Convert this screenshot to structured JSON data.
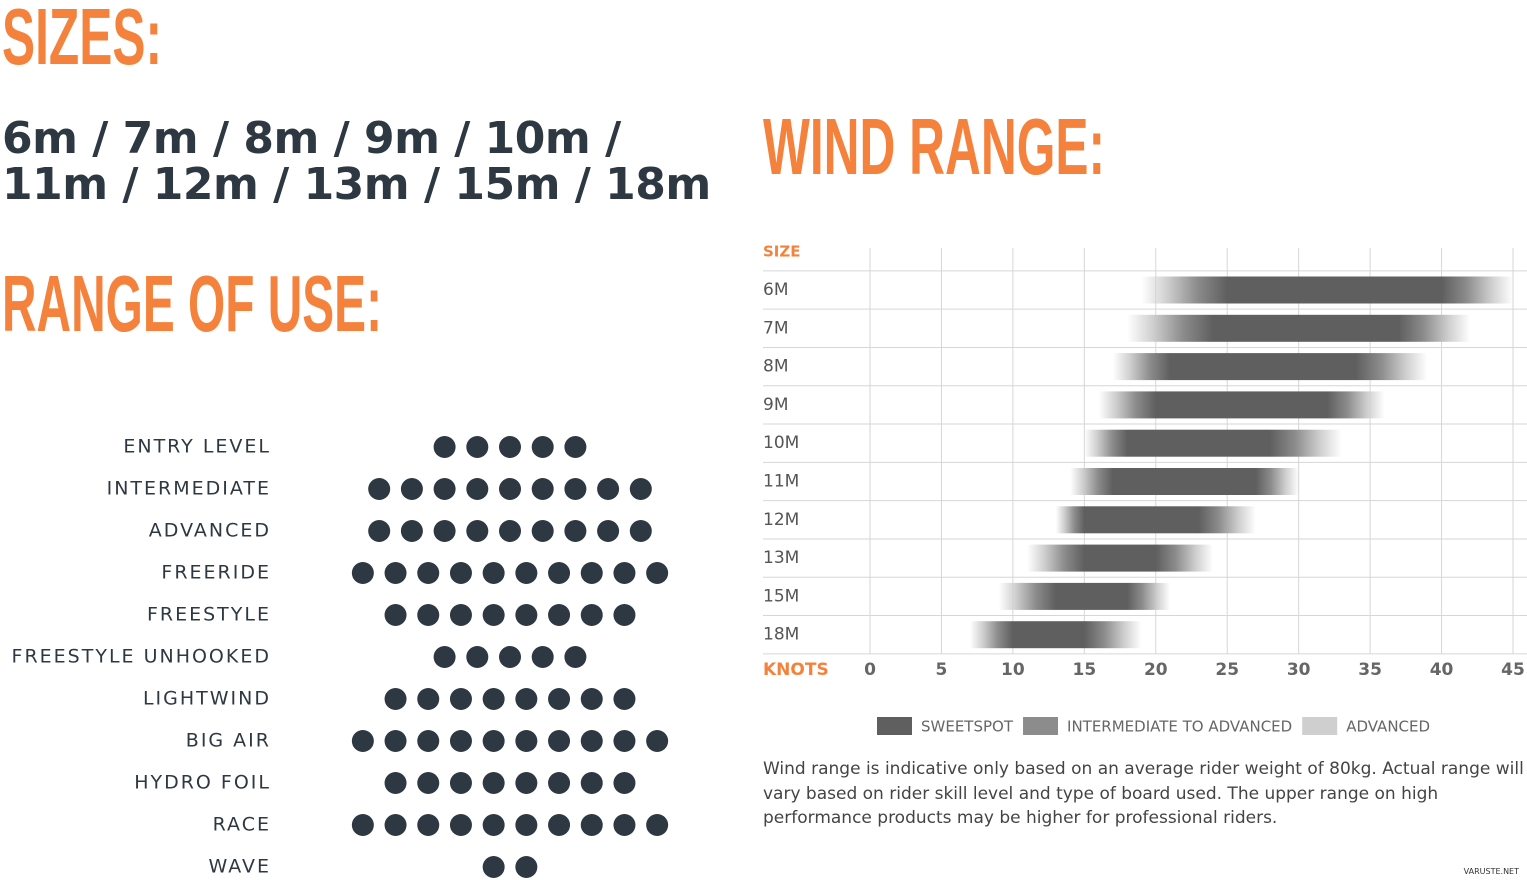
{
  "sizes": {
    "heading": "SIZES:",
    "text": "6m / 7m / 8m / 9m / 10m / 11m / 12m / 13m / 15m / 18m"
  },
  "range_of_use": {
    "heading": "RANGE OF USE:",
    "rows": [
      {
        "label": "ENTRY LEVEL",
        "dots": 5
      },
      {
        "label": "INTERMEDIATE",
        "dots": 9
      },
      {
        "label": "ADVANCED",
        "dots": 9
      },
      {
        "label": "FREERIDE",
        "dots": 10
      },
      {
        "label": "FREESTYLE",
        "dots": 8
      },
      {
        "label": "FREESTYLE UNHOOKED",
        "dots": 5
      },
      {
        "label": "LIGHTWIND",
        "dots": 8
      },
      {
        "label": "BIG AIR",
        "dots": 10
      },
      {
        "label": "HYDRO FOIL",
        "dots": 8
      },
      {
        "label": "RACE",
        "dots": 10
      },
      {
        "label": "WAVE",
        "dots": 2
      }
    ]
  },
  "chart_data": {
    "type": "range",
    "title": "WIND RANGE:",
    "y_label": "SIZE",
    "x_label": "KNOTS",
    "categories": [
      "6M",
      "7M",
      "8M",
      "9M",
      "10M",
      "11M",
      "12M",
      "13M",
      "15M",
      "18M"
    ],
    "series": [
      {
        "name": "SWEETSPOT",
        "color": "#5f5f5f",
        "low": [
          25,
          24,
          21,
          20,
          18,
          17,
          15,
          15,
          13,
          10
        ],
        "high": [
          40,
          37,
          34,
          32,
          28,
          27,
          23,
          20,
          18,
          15
        ]
      },
      {
        "name": "INTERMEDIATE TO ADVANCED",
        "color": "#8c8c8c"
      },
      {
        "name": "ADVANCED",
        "color": "#cfcfcf",
        "low": [
          19,
          18,
          17,
          16,
          15,
          14,
          13,
          11,
          9,
          7
        ],
        "high": [
          45,
          42,
          39,
          36,
          33,
          30,
          27,
          24,
          21,
          19
        ]
      }
    ],
    "xlim": [
      0,
      45
    ],
    "xticks": [
      0,
      5,
      10,
      15,
      20,
      25,
      30,
      35,
      40,
      45
    ],
    "grid": true,
    "note": "Wind range is indicative only based on an average rider weight of 80kg. Actual range will vary based on rider skill level and type of board used. The upper range on high performance products may be higher for professional riders."
  },
  "watermark": "VARUSTE.NET"
}
